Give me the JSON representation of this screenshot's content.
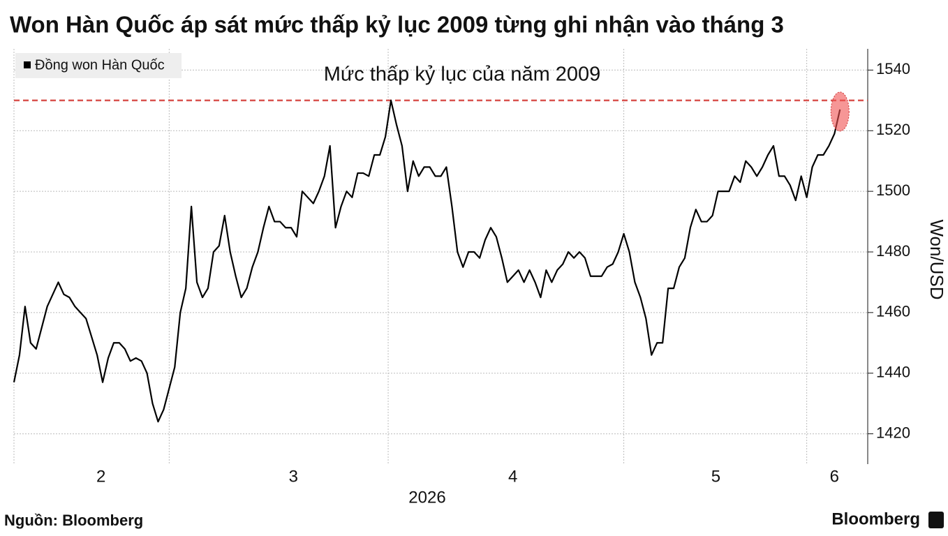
{
  "chart_data": {
    "type": "line",
    "title": "Won Hàn Quốc áp sát mức thấp kỷ lục 2009 từng ghi nhận vào tháng 3",
    "x_label": "2026",
    "y_label": "Won/USD",
    "source": "Nguồn: Bloomberg",
    "brand": "Bloomberg",
    "series": [
      {
        "name": "Đồng won Hàn Quốc",
        "color": "#000000",
        "values": [
          1437,
          1446,
          1462,
          1450,
          1448,
          1455,
          1462,
          1466,
          1470,
          1466,
          1465,
          1462,
          1460,
          1458,
          1452,
          1446,
          1437,
          1445,
          1450,
          1450,
          1448,
          1444,
          1445,
          1444,
          1440,
          1430,
          1424,
          1428,
          1435,
          1442,
          1460,
          1468,
          1495,
          1470,
          1465,
          1468,
          1480,
          1482,
          1492,
          1480,
          1472,
          1465,
          1468,
          1475,
          1480,
          1488,
          1495,
          1490,
          1490,
          1488,
          1488,
          1485,
          1500,
          1498,
          1496,
          1500,
          1505,
          1515,
          1488,
          1495,
          1500,
          1498,
          1506,
          1506,
          1505,
          1512,
          1512,
          1518,
          1530,
          1522,
          1515,
          1500,
          1510,
          1505,
          1508,
          1508,
          1505,
          1505,
          1508,
          1495,
          1480,
          1475,
          1480,
          1480,
          1478,
          1484,
          1488,
          1485,
          1478,
          1470,
          1472,
          1474,
          1470,
          1474,
          1470,
          1465,
          1474,
          1470,
          1474,
          1476,
          1480,
          1478,
          1480,
          1478,
          1472,
          1472,
          1472,
          1475,
          1476,
          1480,
          1486,
          1480,
          1470,
          1465,
          1458,
          1446,
          1450,
          1450,
          1468,
          1468,
          1475,
          1478,
          1488,
          1494,
          1490,
          1490,
          1492,
          1500,
          1500,
          1500,
          1505,
          1503,
          1510,
          1508,
          1505,
          1508,
          1512,
          1515,
          1505,
          1505,
          1502,
          1497,
          1505,
          1498,
          1508,
          1512,
          1512,
          1515,
          1519,
          1527
        ]
      }
    ],
    "reference_line": {
      "value": 1530,
      "label": "Mức thấp kỷ lục của năm 2009",
      "color": "#d9534f"
    },
    "xlim": [
      0,
      154
    ],
    "xticks": [
      28,
      67.5,
      110,
      143
    ],
    "month_labels": [
      {
        "value": 15.7,
        "label": "2"
      },
      {
        "value": 50.4,
        "label": "3"
      },
      {
        "value": 90,
        "label": "4"
      },
      {
        "value": 126.6,
        "label": "5"
      },
      {
        "value": 148,
        "label": "6"
      }
    ],
    "ylim": [
      1410,
      1547
    ],
    "yticks": [
      1420,
      1440,
      1460,
      1480,
      1500,
      1520,
      1540
    ],
    "grid": true,
    "legend": "top-left"
  }
}
